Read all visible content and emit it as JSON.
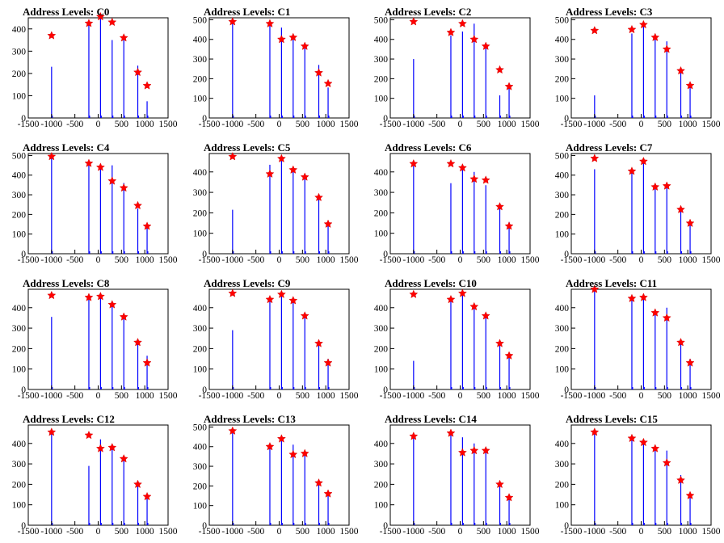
{
  "colors": {
    "bar": "#0000ff",
    "marker": "#ff0000",
    "axis": "#000000",
    "background": "#ffffff"
  },
  "chart_data": [
    {
      "type": "bar",
      "title": "Address Levels: C0",
      "xlim": [
        -1500,
        1500
      ],
      "ylim": [
        0,
        450
      ],
      "yticks": [
        100,
        200,
        300,
        400
      ],
      "xticks": [
        "-1500",
        "-1000",
        "-500",
        "0",
        "500",
        "1000",
        "1500"
      ],
      "peak_x": [
        -1000,
        -200,
        50,
        300,
        550,
        850,
        1050
      ],
      "peak_y": [
        370,
        425,
        455,
        430,
        360,
        205,
        145
      ],
      "bars": [
        {
          "x": -1000,
          "y": 230
        },
        {
          "x": -200,
          "y": 430
        },
        {
          "x": 50,
          "y": 460
        },
        {
          "x": 300,
          "y": 350
        },
        {
          "x": 550,
          "y": 350
        },
        {
          "x": 850,
          "y": 235
        },
        {
          "x": 1050,
          "y": 75
        }
      ]
    },
    {
      "type": "bar",
      "title": "Address Levels: C1",
      "xlim": [
        -1500,
        1500
      ],
      "ylim": [
        0,
        510
      ],
      "yticks": [
        100,
        200,
        300,
        400,
        500
      ],
      "xticks": [
        "-1500",
        "-1000",
        "-500",
        "0",
        "500",
        "1000",
        "1500"
      ],
      "peak_x": [
        -1000,
        -200,
        50,
        300,
        550,
        850,
        1050
      ],
      "peak_y": [
        490,
        480,
        400,
        410,
        365,
        230,
        175
      ],
      "bars": [
        {
          "x": -1000,
          "y": 490
        },
        {
          "x": -200,
          "y": 480
        },
        {
          "x": 50,
          "y": 460
        },
        {
          "x": 300,
          "y": 400
        },
        {
          "x": 550,
          "y": 355
        },
        {
          "x": 850,
          "y": 270
        },
        {
          "x": 1050,
          "y": 155
        }
      ]
    },
    {
      "type": "bar",
      "title": "Address Levels: C2",
      "xlim": [
        -1500,
        1500
      ],
      "ylim": [
        0,
        510
      ],
      "yticks": [
        100,
        200,
        300,
        400,
        500
      ],
      "xticks": [
        "-1500",
        "-1000",
        "-500",
        "0",
        "500",
        "1000",
        "1500"
      ],
      "peak_x": [
        -1000,
        -200,
        50,
        300,
        550,
        850,
        1050
      ],
      "peak_y": [
        490,
        435,
        480,
        400,
        365,
        245,
        160
      ],
      "bars": [
        {
          "x": -1000,
          "y": 300
        },
        {
          "x": -200,
          "y": 420
        },
        {
          "x": 50,
          "y": 440
        },
        {
          "x": 300,
          "y": 480
        },
        {
          "x": 550,
          "y": 355
        },
        {
          "x": 850,
          "y": 115
        },
        {
          "x": 1050,
          "y": 160
        }
      ]
    },
    {
      "type": "bar",
      "title": "Address Levels: C3",
      "xlim": [
        -1500,
        1500
      ],
      "ylim": [
        0,
        510
      ],
      "yticks": [
        100,
        200,
        300,
        400,
        500
      ],
      "xticks": [
        "-1500",
        "-1000",
        "-500",
        "0",
        "500",
        "1000",
        "1500"
      ],
      "peak_x": [
        -1000,
        -200,
        50,
        300,
        550,
        850,
        1050
      ],
      "peak_y": [
        445,
        450,
        475,
        410,
        350,
        240,
        165
      ],
      "bars": [
        {
          "x": -1000,
          "y": 115
        },
        {
          "x": -200,
          "y": 430
        },
        {
          "x": 50,
          "y": 480
        },
        {
          "x": 300,
          "y": 400
        },
        {
          "x": 550,
          "y": 390
        },
        {
          "x": 850,
          "y": 240
        },
        {
          "x": 1050,
          "y": 165
        }
      ]
    },
    {
      "type": "bar",
      "title": "Address Levels: C4",
      "xlim": [
        -1500,
        1500
      ],
      "ylim": [
        0,
        510
      ],
      "yticks": [
        100,
        200,
        300,
        400,
        500
      ],
      "xticks": [
        "-1500",
        "-1000",
        "-500",
        "0",
        "500",
        "1000",
        "1500"
      ],
      "peak_x": [
        -1000,
        -200,
        50,
        300,
        550,
        850,
        1050
      ],
      "peak_y": [
        495,
        460,
        440,
        370,
        335,
        245,
        140
      ],
      "bars": [
        {
          "x": -1000,
          "y": 490
        },
        {
          "x": -200,
          "y": 460
        },
        {
          "x": 50,
          "y": 440
        },
        {
          "x": 300,
          "y": 450
        },
        {
          "x": 550,
          "y": 360
        },
        {
          "x": 850,
          "y": 230
        },
        {
          "x": 1050,
          "y": 140
        }
      ]
    },
    {
      "type": "bar",
      "title": "Address Levels: C5",
      "xlim": [
        -1500,
        1500
      ],
      "ylim": [
        0,
        490
      ],
      "yticks": [
        100,
        200,
        300,
        400
      ],
      "xticks": [
        "-1500",
        "-1000",
        "-500",
        "0",
        "500",
        "1000",
        "1500"
      ],
      "peak_x": [
        -1000,
        -200,
        50,
        300,
        550,
        850,
        1050
      ],
      "peak_y": [
        475,
        390,
        465,
        410,
        375,
        275,
        145
      ],
      "bars": [
        {
          "x": -1000,
          "y": 215
        },
        {
          "x": -200,
          "y": 435
        },
        {
          "x": 50,
          "y": 465
        },
        {
          "x": 300,
          "y": 410
        },
        {
          "x": 550,
          "y": 370
        },
        {
          "x": 850,
          "y": 275
        },
        {
          "x": 1050,
          "y": 145
        }
      ]
    },
    {
      "type": "bar",
      "title": "Address Levels: C6",
      "xlim": [
        -1500,
        1500
      ],
      "ylim": [
        0,
        490
      ],
      "yticks": [
        100,
        200,
        300,
        400
      ],
      "xticks": [
        "-1500",
        "-1000",
        "-500",
        "0",
        "500",
        "1000",
        "1500"
      ],
      "peak_x": [
        -1000,
        -200,
        50,
        300,
        550,
        850,
        1050
      ],
      "peak_y": [
        440,
        440,
        420,
        365,
        360,
        230,
        135
      ],
      "bars": [
        {
          "x": -1000,
          "y": 430
        },
        {
          "x": -200,
          "y": 345
        },
        {
          "x": 50,
          "y": 420
        },
        {
          "x": 300,
          "y": 400
        },
        {
          "x": 550,
          "y": 335
        },
        {
          "x": 850,
          "y": 230
        },
        {
          "x": 1050,
          "y": 155
        }
      ]
    },
    {
      "type": "bar",
      "title": "Address Levels: C7",
      "xlim": [
        -1500,
        1500
      ],
      "ylim": [
        0,
        510
      ],
      "yticks": [
        100,
        200,
        300,
        400,
        500
      ],
      "xticks": [
        "-1500",
        "-1000",
        "-500",
        "0",
        "500",
        "1000",
        "1500"
      ],
      "peak_x": [
        -1000,
        -200,
        50,
        300,
        550,
        850,
        1050
      ],
      "peak_y": [
        485,
        420,
        470,
        340,
        345,
        225,
        155
      ],
      "bars": [
        {
          "x": -1000,
          "y": 430
        },
        {
          "x": -200,
          "y": 420
        },
        {
          "x": 50,
          "y": 470
        },
        {
          "x": 300,
          "y": 340
        },
        {
          "x": 550,
          "y": 345
        },
        {
          "x": 850,
          "y": 215
        },
        {
          "x": 1050,
          "y": 155
        }
      ]
    },
    {
      "type": "bar",
      "title": "Address Levels: C8",
      "xlim": [
        -1500,
        1500
      ],
      "ylim": [
        0,
        490
      ],
      "yticks": [
        100,
        200,
        300,
        400
      ],
      "xticks": [
        "-1500",
        "-1000",
        "-500",
        "0",
        "500",
        "1000",
        "1500"
      ],
      "peak_x": [
        -1000,
        -200,
        50,
        300,
        550,
        850,
        1050
      ],
      "peak_y": [
        460,
        450,
        455,
        415,
        355,
        230,
        130
      ],
      "bars": [
        {
          "x": -1000,
          "y": 355
        },
        {
          "x": -200,
          "y": 440
        },
        {
          "x": 50,
          "y": 455
        },
        {
          "x": 300,
          "y": 410
        },
        {
          "x": 550,
          "y": 355
        },
        {
          "x": 850,
          "y": 225
        },
        {
          "x": 1050,
          "y": 165
        }
      ]
    },
    {
      "type": "bar",
      "title": "Address Levels: C9",
      "xlim": [
        -1500,
        1500
      ],
      "ylim": [
        0,
        490
      ],
      "yticks": [
        100,
        200,
        300,
        400
      ],
      "xticks": [
        "-1500",
        "-1000",
        "-500",
        "0",
        "500",
        "1000",
        "1500"
      ],
      "peak_x": [
        -1000,
        -200,
        50,
        300,
        550,
        850,
        1050
      ],
      "peak_y": [
        470,
        440,
        465,
        435,
        360,
        225,
        130
      ],
      "bars": [
        {
          "x": -1000,
          "y": 290
        },
        {
          "x": -200,
          "y": 440
        },
        {
          "x": 50,
          "y": 465
        },
        {
          "x": 300,
          "y": 435
        },
        {
          "x": 550,
          "y": 355
        },
        {
          "x": 850,
          "y": 225
        },
        {
          "x": 1050,
          "y": 150
        }
      ]
    },
    {
      "type": "bar",
      "title": "Address Levels: C10",
      "xlim": [
        -1500,
        1500
      ],
      "ylim": [
        0,
        490
      ],
      "yticks": [
        100,
        200,
        300,
        400
      ],
      "xticks": [
        "-1500",
        "-1000",
        "-500",
        "0",
        "500",
        "1000",
        "1500"
      ],
      "peak_x": [
        -1000,
        -200,
        50,
        300,
        550,
        850,
        1050
      ],
      "peak_y": [
        465,
        440,
        470,
        405,
        360,
        225,
        165
      ],
      "bars": [
        {
          "x": -1000,
          "y": 140
        },
        {
          "x": -200,
          "y": 430
        },
        {
          "x": 50,
          "y": 470
        },
        {
          "x": 300,
          "y": 405
        },
        {
          "x": 550,
          "y": 355
        },
        {
          "x": 850,
          "y": 225
        },
        {
          "x": 1050,
          "y": 165
        }
      ]
    },
    {
      "type": "bar",
      "title": "Address Levels: C11",
      "xlim": [
        -1500,
        1500
      ],
      "ylim": [
        0,
        490
      ],
      "yticks": [
        100,
        200,
        300,
        400
      ],
      "xticks": [
        "-1500",
        "-1000",
        "-500",
        "0",
        "500",
        "1000",
        "1500"
      ],
      "peak_x": [
        -1000,
        -200,
        50,
        300,
        550,
        850,
        1050
      ],
      "peak_y": [
        490,
        445,
        450,
        375,
        350,
        230,
        130
      ],
      "bars": [
        {
          "x": -1000,
          "y": 490
        },
        {
          "x": -200,
          "y": 440
        },
        {
          "x": 50,
          "y": 450
        },
        {
          "x": 300,
          "y": 380
        },
        {
          "x": 550,
          "y": 400
        },
        {
          "x": 850,
          "y": 225
        },
        {
          "x": 1050,
          "y": 150
        }
      ]
    },
    {
      "type": "bar",
      "title": "Address Levels: C12",
      "xlim": [
        -1500,
        1500
      ],
      "ylim": [
        0,
        490
      ],
      "yticks": [
        100,
        200,
        300,
        400
      ],
      "xticks": [
        "-1500",
        "-1000",
        "-500",
        "0",
        "500",
        "1000",
        "1500"
      ],
      "peak_x": [
        -1000,
        -200,
        50,
        300,
        550,
        850,
        1050
      ],
      "peak_y": [
        455,
        440,
        375,
        380,
        325,
        200,
        140
      ],
      "bars": [
        {
          "x": -1000,
          "y": 455
        },
        {
          "x": -200,
          "y": 290
        },
        {
          "x": 50,
          "y": 420
        },
        {
          "x": 300,
          "y": 375
        },
        {
          "x": 550,
          "y": 325
        },
        {
          "x": 850,
          "y": 200
        },
        {
          "x": 1050,
          "y": 140
        }
      ]
    },
    {
      "type": "bar",
      "title": "Address Levels: C13",
      "xlim": [
        -1500,
        1500
      ],
      "ylim": [
        0,
        510
      ],
      "yticks": [
        100,
        200,
        300,
        400,
        500
      ],
      "xticks": [
        "-1500",
        "-1000",
        "-500",
        "0",
        "500",
        "1000",
        "1500"
      ],
      "peak_x": [
        -1000,
        -200,
        50,
        300,
        550,
        850,
        1050
      ],
      "peak_y": [
        480,
        400,
        440,
        360,
        365,
        215,
        160
      ],
      "bars": [
        {
          "x": -1000,
          "y": 480
        },
        {
          "x": -200,
          "y": 400
        },
        {
          "x": 50,
          "y": 440
        },
        {
          "x": 300,
          "y": 410
        },
        {
          "x": 550,
          "y": 365
        },
        {
          "x": 850,
          "y": 215
        },
        {
          "x": 1050,
          "y": 160
        }
      ]
    },
    {
      "type": "bar",
      "title": "Address Levels: C14",
      "xlim": [
        -1500,
        1500
      ],
      "ylim": [
        0,
        490
      ],
      "yticks": [
        100,
        200,
        300,
        400
      ],
      "xticks": [
        "-1500",
        "-1000",
        "-500",
        "0",
        "500",
        "1000",
        "1500"
      ],
      "peak_x": [
        -1000,
        -200,
        50,
        300,
        550,
        850,
        1050
      ],
      "peak_y": [
        435,
        450,
        355,
        365,
        365,
        200,
        135
      ],
      "bars": [
        {
          "x": -1000,
          "y": 430
        },
        {
          "x": -200,
          "y": 450
        },
        {
          "x": 50,
          "y": 430
        },
        {
          "x": 300,
          "y": 400
        },
        {
          "x": 550,
          "y": 360
        },
        {
          "x": 850,
          "y": 200
        },
        {
          "x": 1050,
          "y": 135
        }
      ]
    },
    {
      "type": "bar",
      "title": "Address Levels: C15",
      "xlim": [
        -1500,
        1500
      ],
      "ylim": [
        0,
        490
      ],
      "yticks": [
        100,
        200,
        300,
        400
      ],
      "xticks": [
        "-1500",
        "-1000",
        "-500",
        "0",
        "500",
        "1000",
        "1500"
      ],
      "peak_x": [
        -1000,
        -200,
        50,
        300,
        550,
        850,
        1050
      ],
      "peak_y": [
        455,
        425,
        405,
        375,
        305,
        220,
        145
      ],
      "bars": [
        {
          "x": -1000,
          "y": 455
        },
        {
          "x": -200,
          "y": 425
        },
        {
          "x": 50,
          "y": 405
        },
        {
          "x": 300,
          "y": 375
        },
        {
          "x": 550,
          "y": 365
        },
        {
          "x": 850,
          "y": 245
        },
        {
          "x": 1050,
          "y": 145
        }
      ]
    }
  ]
}
